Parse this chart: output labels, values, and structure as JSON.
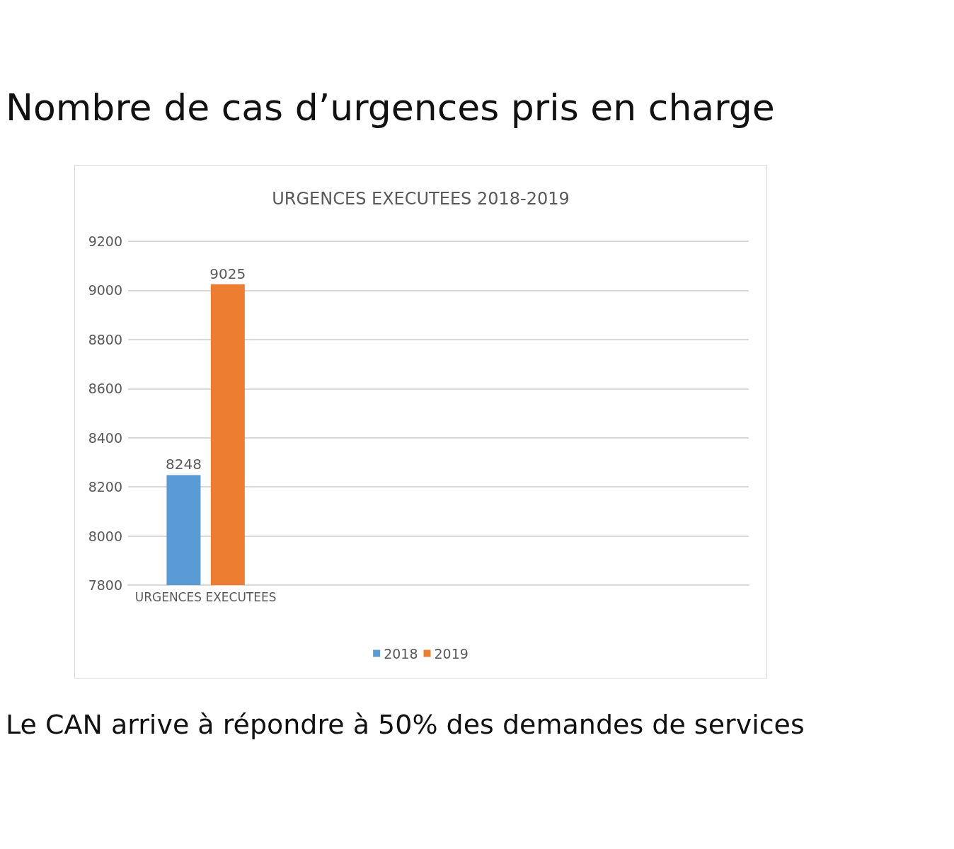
{
  "chart_data": {
    "type": "bar",
    "title": "Nombre de cas d’urgences pris en charge",
    "subtitle": "URGENCES EXECUTEES 2018-2019",
    "categories": [
      "URGENCES EXECUTEES"
    ],
    "series": [
      {
        "name": "2018",
        "color": "#5b9bd5",
        "values": [
          8248
        ]
      },
      {
        "name": "2019",
        "color": "#ed7d31",
        "values": [
          9025
        ]
      }
    ],
    "ylim": [
      7800,
      9200
    ],
    "yticks": [
      7800,
      8000,
      8200,
      8400,
      8600,
      8800,
      9000,
      9200
    ],
    "grid": "y",
    "legend": "bottom",
    "data_labels": true,
    "annotations": [
      "Le CAN arrive à répondre à 50% des demandes de services"
    ]
  }
}
